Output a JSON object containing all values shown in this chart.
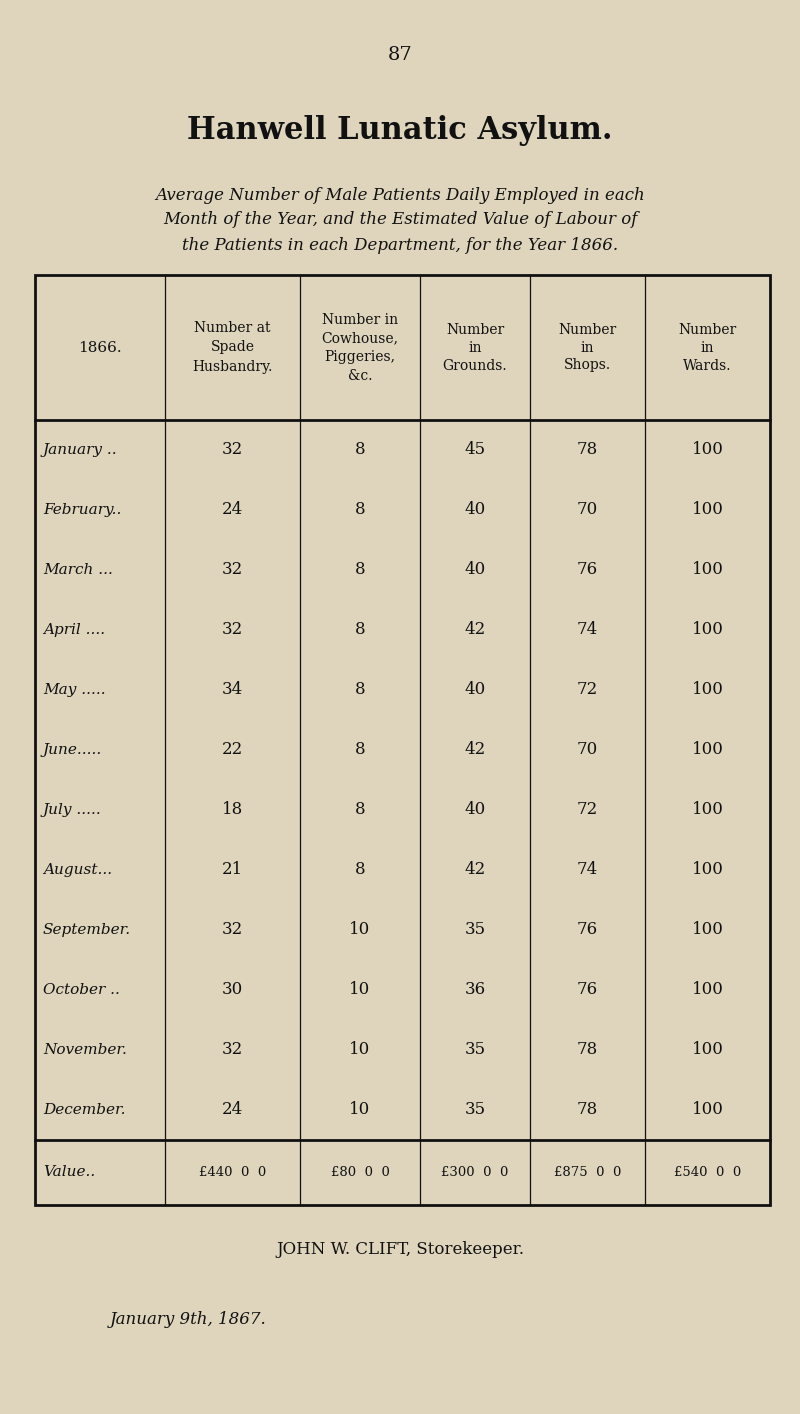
{
  "page_number": "87",
  "title_gothic": "Hanwell Lunatic Asylum.",
  "subtitle_line1": "Average Number of Male Patients Daily Employed in each",
  "subtitle_line2": "Month of the Year, and the Estimated Value of Labour of",
  "subtitle_line3": "the Patients in each Department, for the Year 1866.",
  "col_headers_row1": [
    "1866.",
    "Number at",
    "Number in",
    "Number",
    "Number",
    "Number"
  ],
  "col_headers_row2": [
    "",
    "Spade",
    "Cowhouse,",
    "in",
    "in",
    "in"
  ],
  "col_headers_row3": [
    "",
    "Husbandry.",
    "Piggeries,",
    "Grounds.",
    "Shops.",
    "Wards."
  ],
  "col_headers_row4": [
    "",
    "",
    "&c.",
    "",
    "",
    ""
  ],
  "months": [
    "January ..",
    "February..",
    "March ...",
    "April ....",
    "May .....",
    "June.....",
    "July .....",
    "August...",
    "September.",
    "October ..",
    "November.",
    "December."
  ],
  "data": [
    [
      32,
      8,
      45,
      78,
      100
    ],
    [
      24,
      8,
      40,
      70,
      100
    ],
    [
      32,
      8,
      40,
      76,
      100
    ],
    [
      32,
      8,
      42,
      74,
      100
    ],
    [
      34,
      8,
      40,
      72,
      100
    ],
    [
      22,
      8,
      42,
      70,
      100
    ],
    [
      18,
      8,
      40,
      72,
      100
    ],
    [
      21,
      8,
      42,
      74,
      100
    ],
    [
      32,
      10,
      35,
      76,
      100
    ],
    [
      30,
      10,
      36,
      76,
      100
    ],
    [
      32,
      10,
      35,
      78,
      100
    ],
    [
      24,
      10,
      35,
      78,
      100
    ]
  ],
  "value_row": [
    "£440  0  0",
    "£80  0  0",
    "£300  0  0",
    "£875  0  0",
    "£540  0  0"
  ],
  "value_label": "Value..",
  "footer_name": "JOHN W. CLIFT, Storekeeper.",
  "footer_date": "January 9th, 1867.",
  "bg_color": "#ded5bc",
  "text_color": "#111111",
  "line_color": "#111111"
}
